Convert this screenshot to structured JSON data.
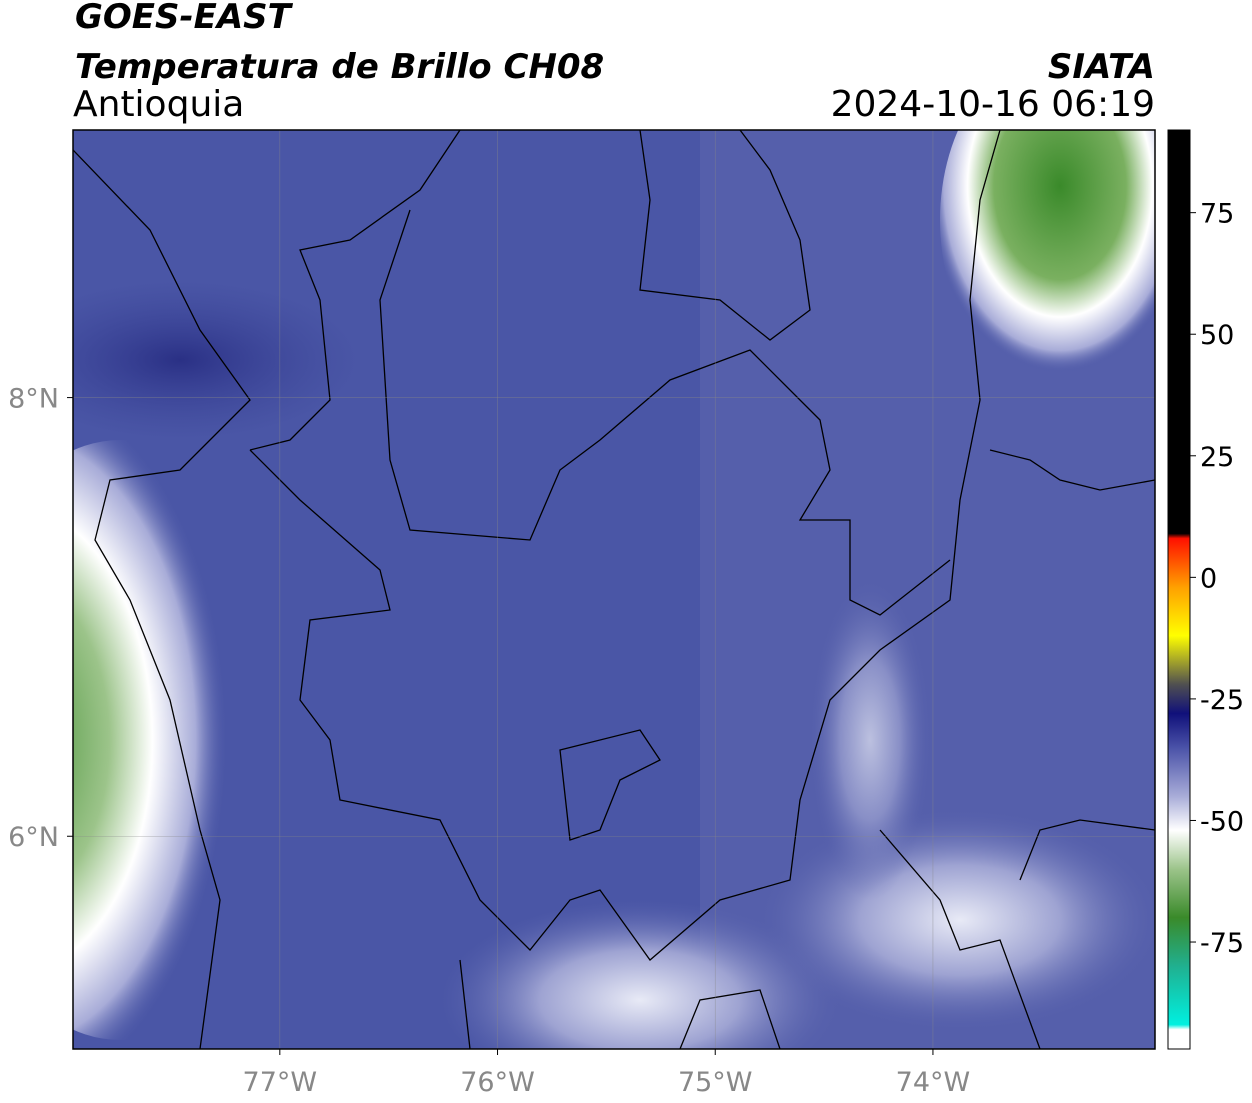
{
  "header": {
    "satellite": "GOES-EAST",
    "product": "Temperatura de Brillo CH08",
    "region": "Antioquia",
    "source": "SIATA",
    "datetime": "2024-10-16 06:19"
  },
  "map": {
    "xlim": [
      -77.95,
      -72.98
    ],
    "ylim": [
      5.03,
      9.22
    ],
    "xticks": [
      {
        "value": -77,
        "label": "77°W"
      },
      {
        "value": -76,
        "label": "76°W"
      },
      {
        "value": -75,
        "label": "75°W"
      },
      {
        "value": -74,
        "label": "74°W"
      }
    ],
    "yticks": [
      {
        "value": 6,
        "label": "6°N"
      },
      {
        "value": 8,
        "label": "8°N"
      }
    ],
    "grid": true
  },
  "colorbar": {
    "lim": [
      -97,
      92
    ],
    "ticks": [
      75,
      50,
      25,
      0,
      -25,
      -50,
      -75
    ],
    "colormap": [
      [
        -97,
        "#ffffff"
      ],
      [
        -93,
        "#ffffff"
      ],
      [
        -92,
        "#00f0e0"
      ],
      [
        -80,
        "#20b090"
      ],
      [
        -70,
        "#3a8a2a"
      ],
      [
        -60,
        "#9cc48a"
      ],
      [
        -52,
        "#ffffff"
      ],
      [
        -45,
        "#a8acd8"
      ],
      [
        -35,
        "#4a52a8"
      ],
      [
        -28,
        "#10107a"
      ],
      [
        -22,
        "#505050"
      ],
      [
        -12,
        "#ffff00"
      ],
      [
        -2,
        "#ffa000"
      ],
      [
        8,
        "#ff1000"
      ],
      [
        9,
        "#000000"
      ],
      [
        92,
        "#000000"
      ]
    ]
  }
}
